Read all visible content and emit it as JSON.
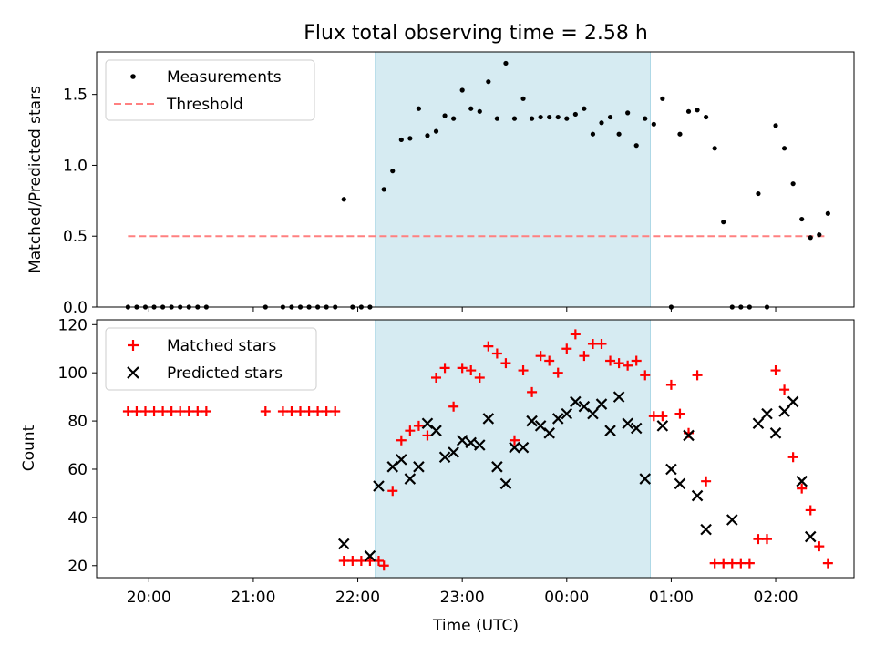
{
  "chart_data": [
    {
      "type": "scatter",
      "title": "Flux total observing time = 2.58 h",
      "xlabel": "",
      "ylabel": "Matched/Predicted stars",
      "ylim": [
        0,
        1.8
      ],
      "yticks": [
        "0.0",
        "0.5",
        "1.0",
        "1.5"
      ],
      "grid": false,
      "legend": "top-left",
      "shaded_span": [
        "22:10",
        "00:48"
      ],
      "series": [
        {
          "name": "Measurements",
          "marker": "dot",
          "color": "#000000",
          "points": [
            [
              "19:48",
              0.0
            ],
            [
              "19:53",
              0.0
            ],
            [
              "19:58",
              0.0
            ],
            [
              "20:03",
              0.0
            ],
            [
              "20:08",
              0.0
            ],
            [
              "20:13",
              0.0
            ],
            [
              "20:18",
              0.0
            ],
            [
              "20:23",
              0.0
            ],
            [
              "20:28",
              0.0
            ],
            [
              "20:33",
              0.0
            ],
            [
              "21:07",
              0.0
            ],
            [
              "21:17",
              0.0
            ],
            [
              "21:22",
              0.0
            ],
            [
              "21:27",
              0.0
            ],
            [
              "21:32",
              0.0
            ],
            [
              "21:37",
              0.0
            ],
            [
              "21:42",
              0.0
            ],
            [
              "21:47",
              0.0
            ],
            [
              "21:52",
              0.76
            ],
            [
              "21:57",
              0.0
            ],
            [
              "22:02",
              0.0
            ],
            [
              "22:07",
              0.0
            ],
            [
              "22:15",
              0.83
            ],
            [
              "22:20",
              0.96
            ],
            [
              "22:25",
              1.18
            ],
            [
              "22:30",
              1.19
            ],
            [
              "22:35",
              1.4
            ],
            [
              "22:40",
              1.21
            ],
            [
              "22:45",
              1.24
            ],
            [
              "22:50",
              1.35
            ],
            [
              "22:55",
              1.33
            ],
            [
              "23:00",
              1.53
            ],
            [
              "23:05",
              1.4
            ],
            [
              "23:10",
              1.38
            ],
            [
              "23:15",
              1.59
            ],
            [
              "23:20",
              1.33
            ],
            [
              "23:25",
              1.72
            ],
            [
              "23:30",
              1.33
            ],
            [
              "23:35",
              1.47
            ],
            [
              "23:40",
              1.33
            ],
            [
              "23:45",
              1.34
            ],
            [
              "23:50",
              1.34
            ],
            [
              "23:55",
              1.34
            ],
            [
              "00:00",
              1.33
            ],
            [
              "00:05",
              1.36
            ],
            [
              "00:10",
              1.4
            ],
            [
              "00:15",
              1.22
            ],
            [
              "00:20",
              1.3
            ],
            [
              "00:25",
              1.34
            ],
            [
              "00:30",
              1.22
            ],
            [
              "00:35",
              1.37
            ],
            [
              "00:40",
              1.14
            ],
            [
              "00:45",
              1.33
            ],
            [
              "00:50",
              1.29
            ],
            [
              "00:55",
              1.47
            ],
            [
              "01:00",
              0.0
            ],
            [
              "01:05",
              1.22
            ],
            [
              "01:10",
              1.38
            ],
            [
              "01:15",
              1.39
            ],
            [
              "01:20",
              1.34
            ],
            [
              "01:25",
              1.12
            ],
            [
              "01:30",
              0.6
            ],
            [
              "01:35",
              0.0
            ],
            [
              "01:40",
              0.0
            ],
            [
              "01:45",
              0.0
            ],
            [
              "01:50",
              0.8
            ],
            [
              "01:55",
              0.0
            ],
            [
              "02:00",
              1.28
            ],
            [
              "02:05",
              1.12
            ],
            [
              "02:10",
              0.87
            ],
            [
              "02:15",
              0.62
            ],
            [
              "02:20",
              0.49
            ],
            [
              "02:25",
              0.51
            ],
            [
              "02:30",
              0.66
            ]
          ]
        },
        {
          "name": "Threshold",
          "marker": "dashed-line",
          "color": "#ff8080",
          "points": [
            [
              "19:48",
              0.5
            ],
            [
              "02:30",
              0.5
            ]
          ]
        }
      ]
    },
    {
      "type": "scatter",
      "xlabel": "Time (UTC)",
      "ylabel": "Count",
      "ylim": [
        15,
        122
      ],
      "yticks": [
        "20",
        "40",
        "60",
        "80",
        "100",
        "120"
      ],
      "xticks": [
        "20:00",
        "21:00",
        "22:00",
        "23:00",
        "00:00",
        "01:00",
        "02:00"
      ],
      "grid": false,
      "legend": "top-left",
      "shaded_span": [
        "22:10",
        "00:48"
      ],
      "series": [
        {
          "name": "Matched stars",
          "marker": "plus",
          "color": "#ff0000",
          "points": [
            [
              "19:48",
              84
            ],
            [
              "19:53",
              84
            ],
            [
              "19:58",
              84
            ],
            [
              "20:03",
              84
            ],
            [
              "20:08",
              84
            ],
            [
              "20:13",
              84
            ],
            [
              "20:18",
              84
            ],
            [
              "20:23",
              84
            ],
            [
              "20:28",
              84
            ],
            [
              "20:33",
              84
            ],
            [
              "21:07",
              84
            ],
            [
              "21:17",
              84
            ],
            [
              "21:22",
              84
            ],
            [
              "21:27",
              84
            ],
            [
              "21:32",
              84
            ],
            [
              "21:37",
              84
            ],
            [
              "21:42",
              84
            ],
            [
              "21:47",
              84
            ],
            [
              "21:52",
              22
            ],
            [
              "21:57",
              22
            ],
            [
              "22:02",
              22
            ],
            [
              "22:07",
              22
            ],
            [
              "22:12",
              22
            ],
            [
              "22:15",
              20
            ],
            [
              "22:20",
              51
            ],
            [
              "22:25",
              72
            ],
            [
              "22:30",
              76
            ],
            [
              "22:35",
              78
            ],
            [
              "22:40",
              74
            ],
            [
              "22:45",
              98
            ],
            [
              "22:50",
              102
            ],
            [
              "22:55",
              86
            ],
            [
              "23:00",
              102
            ],
            [
              "23:05",
              101
            ],
            [
              "23:10",
              98
            ],
            [
              "23:15",
              111
            ],
            [
              "23:20",
              108
            ],
            [
              "23:25",
              104
            ],
            [
              "23:30",
              72
            ],
            [
              "23:35",
              101
            ],
            [
              "23:40",
              92
            ],
            [
              "23:45",
              107
            ],
            [
              "23:50",
              105
            ],
            [
              "23:55",
              100
            ],
            [
              "00:00",
              110
            ],
            [
              "00:05",
              116
            ],
            [
              "00:10",
              107
            ],
            [
              "00:15",
              112
            ],
            [
              "00:20",
              112
            ],
            [
              "00:25",
              105
            ],
            [
              "00:30",
              104
            ],
            [
              "00:35",
              103
            ],
            [
              "00:40",
              105
            ],
            [
              "00:45",
              99
            ],
            [
              "00:50",
              82
            ],
            [
              "00:55",
              82
            ],
            [
              "01:00",
              95
            ],
            [
              "01:05",
              83
            ],
            [
              "01:10",
              75
            ],
            [
              "01:15",
              99
            ],
            [
              "01:20",
              55
            ],
            [
              "01:25",
              21
            ],
            [
              "01:30",
              21
            ],
            [
              "01:35",
              21
            ],
            [
              "01:40",
              21
            ],
            [
              "01:45",
              21
            ],
            [
              "01:50",
              31
            ],
            [
              "01:55",
              31
            ],
            [
              "02:00",
              101
            ],
            [
              "02:05",
              93
            ],
            [
              "02:10",
              65
            ],
            [
              "02:15",
              52
            ],
            [
              "02:20",
              43
            ],
            [
              "02:25",
              28
            ],
            [
              "02:30",
              21
            ]
          ]
        },
        {
          "name": "Predicted stars",
          "marker": "x",
          "color": "#000000",
          "points": [
            [
              "21:52",
              29
            ],
            [
              "22:07",
              24
            ],
            [
              "22:12",
              53
            ],
            [
              "22:20",
              61
            ],
            [
              "22:25",
              64
            ],
            [
              "22:30",
              56
            ],
            [
              "22:35",
              61
            ],
            [
              "22:40",
              79
            ],
            [
              "22:45",
              76
            ],
            [
              "22:50",
              65
            ],
            [
              "22:55",
              67
            ],
            [
              "23:00",
              72
            ],
            [
              "23:05",
              71
            ],
            [
              "23:10",
              70
            ],
            [
              "23:15",
              81
            ],
            [
              "23:20",
              61
            ],
            [
              "23:25",
              54
            ],
            [
              "23:30",
              69
            ],
            [
              "23:35",
              69
            ],
            [
              "23:40",
              80
            ],
            [
              "23:45",
              78
            ],
            [
              "23:50",
              75
            ],
            [
              "23:55",
              81
            ],
            [
              "00:00",
              83
            ],
            [
              "00:05",
              88
            ],
            [
              "00:10",
              86
            ],
            [
              "00:15",
              83
            ],
            [
              "00:20",
              87
            ],
            [
              "00:25",
              76
            ],
            [
              "00:30",
              90
            ],
            [
              "00:35",
              79
            ],
            [
              "00:40",
              77
            ],
            [
              "00:45",
              56
            ],
            [
              "00:55",
              78
            ],
            [
              "01:00",
              60
            ],
            [
              "01:05",
              54
            ],
            [
              "01:10",
              74
            ],
            [
              "01:15",
              49
            ],
            [
              "01:20",
              35
            ],
            [
              "01:35",
              39
            ],
            [
              "01:50",
              79
            ],
            [
              "01:55",
              83
            ],
            [
              "02:00",
              75
            ],
            [
              "02:05",
              84
            ],
            [
              "02:10",
              88
            ],
            [
              "02:15",
              55
            ],
            [
              "02:20",
              32
            ]
          ]
        }
      ]
    }
  ]
}
